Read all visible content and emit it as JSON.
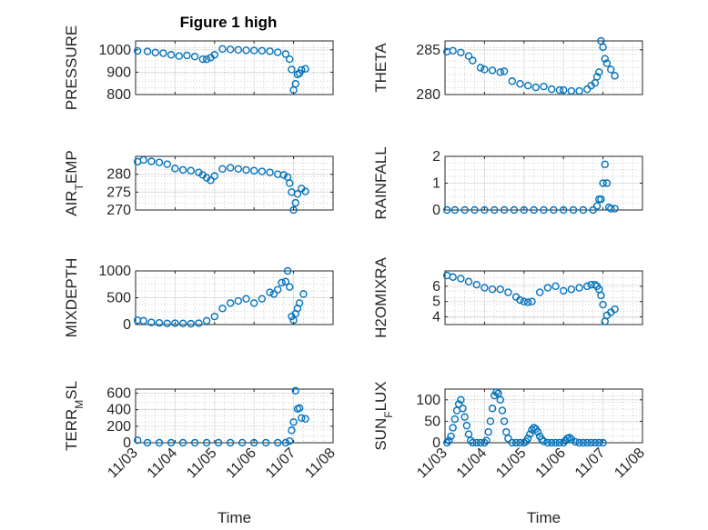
{
  "figure_title": "Figure 1 high",
  "colors": {
    "marker": "#0072BD",
    "axis": "#262626"
  },
  "chart_data": [
    {
      "type": "scatter",
      "title": "Figure 1 high",
      "ylabel": "PRESSURE",
      "xlabel": "",
      "ylim": [
        800,
        1040
      ],
      "yticks": [
        800,
        900,
        1000
      ],
      "xlim": [
        0,
        5
      ],
      "xticks": [
        0,
        1,
        2,
        3,
        4,
        5
      ],
      "xticklabels": [],
      "x": [
        0.05,
        0.3,
        0.5,
        0.7,
        0.9,
        1.1,
        1.3,
        1.5,
        1.7,
        1.8,
        1.9,
        2.0,
        2.2,
        2.4,
        2.6,
        2.8,
        3.0,
        3.2,
        3.4,
        3.6,
        3.8,
        3.9,
        3.95,
        4.0,
        4.05,
        4.1,
        4.15,
        4.2,
        4.3
      ],
      "y": [
        995,
        993,
        988,
        985,
        978,
        972,
        975,
        970,
        958,
        958,
        965,
        978,
        1004,
        1002,
        1000,
        998,
        997,
        996,
        994,
        989,
        981,
        958,
        912,
        820,
        848,
        890,
        895,
        910,
        915
      ]
    },
    {
      "type": "scatter",
      "title": "",
      "ylabel": "THETA",
      "xlabel": "",
      "ylim": [
        280,
        286
      ],
      "yticks": [
        280,
        285
      ],
      "xlim": [
        0,
        5
      ],
      "xticks": [
        0,
        1,
        2,
        3,
        4,
        5
      ],
      "xticklabels": [],
      "x": [
        0.05,
        0.2,
        0.4,
        0.6,
        0.7,
        0.9,
        1.0,
        1.2,
        1.4,
        1.5,
        1.7,
        1.9,
        2.1,
        2.3,
        2.5,
        2.7,
        2.9,
        3.0,
        3.2,
        3.4,
        3.6,
        3.7,
        3.8,
        3.85,
        3.9,
        3.95,
        4.0,
        4.05,
        4.1,
        4.2,
        4.3
      ],
      "y": [
        284.8,
        284.9,
        284.7,
        284.3,
        283.8,
        283.0,
        282.8,
        282.7,
        282.5,
        282.6,
        281.5,
        281.2,
        281.0,
        280.8,
        280.9,
        280.6,
        280.5,
        280.5,
        280.4,
        280.4,
        280.6,
        281.0,
        281.3,
        282.0,
        282.5,
        286.0,
        285.3,
        284.0,
        283.5,
        282.8,
        282.1
      ]
    },
    {
      "type": "scatter",
      "title": "",
      "ylabel": "AIR_TEMP",
      "xlabel": "",
      "ylim": [
        270,
        285
      ],
      "yticks": [
        270,
        275,
        280
      ],
      "xlim": [
        0,
        5
      ],
      "xticks": [
        0,
        1,
        2,
        3,
        4,
        5
      ],
      "xticklabels": [],
      "x": [
        0.05,
        0.2,
        0.4,
        0.6,
        0.8,
        1.0,
        1.2,
        1.4,
        1.6,
        1.7,
        1.8,
        1.9,
        2.0,
        2.2,
        2.4,
        2.6,
        2.8,
        3.0,
        3.2,
        3.4,
        3.6,
        3.75,
        3.85,
        3.9,
        3.95,
        4.0,
        4.05,
        4.1,
        4.2,
        4.3
      ],
      "y": [
        283.5,
        284.0,
        283.6,
        283.3,
        282.8,
        281.6,
        281.2,
        281.0,
        280.5,
        279.8,
        279.0,
        278.3,
        279.5,
        281.5,
        281.8,
        281.5,
        281.2,
        281.0,
        280.8,
        280.5,
        280.0,
        279.8,
        279.2,
        277.5,
        275.0,
        270.0,
        272.0,
        274.5,
        276.0,
        275.2
      ]
    },
    {
      "type": "scatter",
      "title": "",
      "ylabel": "RAINFALL",
      "xlabel": "",
      "ylim": [
        0,
        2
      ],
      "yticks": [
        0,
        1,
        2
      ],
      "xlim": [
        0,
        5
      ],
      "xticks": [
        0,
        1,
        2,
        3,
        4,
        5
      ],
      "xticklabels": [],
      "x": [
        0.05,
        0.25,
        0.5,
        0.75,
        1.0,
        1.25,
        1.5,
        1.75,
        2.0,
        2.25,
        2.5,
        2.75,
        3.0,
        3.25,
        3.5,
        3.75,
        3.85,
        3.9,
        3.95,
        4.0,
        4.05,
        4.1,
        4.15,
        4.2,
        4.3
      ],
      "y": [
        0,
        0,
        0,
        0,
        0,
        0,
        0,
        0,
        0,
        0,
        0,
        0,
        0,
        0,
        0,
        0,
        0.15,
        0.4,
        0.4,
        1.0,
        1.7,
        1.0,
        0.1,
        0.05,
        0.05
      ]
    },
    {
      "type": "scatter",
      "title": "",
      "ylabel": "MIXDEPTH",
      "xlabel": "",
      "ylim": [
        0,
        1000
      ],
      "yticks": [
        0,
        500,
        1000
      ],
      "xlim": [
        0,
        5
      ],
      "xticks": [
        0,
        1,
        2,
        3,
        4,
        5
      ],
      "xticklabels": [],
      "x": [
        0.05,
        0.2,
        0.4,
        0.6,
        0.8,
        1.0,
        1.2,
        1.4,
        1.6,
        1.8,
        2.0,
        2.2,
        2.4,
        2.6,
        2.8,
        3.0,
        3.2,
        3.4,
        3.5,
        3.6,
        3.7,
        3.8,
        3.85,
        3.9,
        3.95,
        4.0,
        4.05,
        4.1,
        4.15,
        4.25
      ],
      "y": [
        80,
        70,
        40,
        30,
        20,
        25,
        20,
        15,
        25,
        70,
        150,
        300,
        400,
        440,
        480,
        400,
        480,
        600,
        570,
        650,
        780,
        800,
        1000,
        700,
        150,
        80,
        200,
        300,
        400,
        570
      ]
    },
    {
      "type": "scatter",
      "title": "",
      "ylabel": "H2OMIXRA",
      "xlabel": "",
      "ylim": [
        3.5,
        7
      ],
      "yticks": [
        4,
        5,
        6
      ],
      "xlim": [
        0,
        5
      ],
      "xticks": [
        0,
        1,
        2,
        3,
        4,
        5
      ],
      "xticklabels": [],
      "x": [
        0.05,
        0.2,
        0.4,
        0.6,
        0.8,
        1.0,
        1.2,
        1.4,
        1.6,
        1.8,
        1.9,
        2.0,
        2.1,
        2.2,
        2.4,
        2.6,
        2.8,
        3.0,
        3.2,
        3.4,
        3.6,
        3.7,
        3.8,
        3.85,
        3.9,
        3.95,
        4.0,
        4.05,
        4.1,
        4.2,
        4.3
      ],
      "y": [
        6.7,
        6.6,
        6.5,
        6.3,
        6.1,
        5.9,
        5.8,
        5.8,
        5.6,
        5.3,
        5.1,
        5.0,
        4.95,
        5.0,
        5.6,
        5.9,
        6.0,
        5.7,
        5.8,
        5.9,
        6.0,
        6.1,
        6.1,
        6.0,
        5.8,
        5.4,
        4.8,
        3.7,
        4.1,
        4.3,
        4.5
      ]
    },
    {
      "type": "scatter",
      "title": "",
      "ylabel": "TERR_MSL",
      "xlabel": "Time",
      "ylim": [
        0,
        650
      ],
      "yticks": [
        0,
        200,
        400,
        600
      ],
      "xlim": [
        0,
        5
      ],
      "xticks": [
        0,
        1,
        2,
        3,
        4,
        5
      ],
      "xticklabels": [
        "11/03",
        "11/04",
        "11/05",
        "11/06",
        "11/07",
        "11/08"
      ],
      "x": [
        0.05,
        0.3,
        0.6,
        0.9,
        1.2,
        1.5,
        1.8,
        2.1,
        2.4,
        2.7,
        3.0,
        3.3,
        3.6,
        3.8,
        3.9,
        3.95,
        4.0,
        4.05,
        4.1,
        4.15,
        4.2,
        4.3
      ],
      "y": [
        30,
        0,
        0,
        0,
        0,
        0,
        0,
        0,
        0,
        0,
        0,
        0,
        0,
        0,
        20,
        150,
        250,
        630,
        410,
        420,
        300,
        290
      ]
    },
    {
      "type": "scatter",
      "title": "",
      "ylabel": "SUN_FLUX",
      "xlabel": "Time",
      "ylim": [
        0,
        125
      ],
      "yticks": [
        0,
        50,
        100
      ],
      "xlim": [
        0,
        5
      ],
      "xticks": [
        0,
        1,
        2,
        3,
        4,
        5
      ],
      "xticklabels": [
        "11/03",
        "11/04",
        "11/05",
        "11/06",
        "11/07",
        "11/08"
      ],
      "x": [
        0.05,
        0.1,
        0.15,
        0.2,
        0.25,
        0.3,
        0.35,
        0.4,
        0.45,
        0.5,
        0.55,
        0.6,
        0.65,
        0.7,
        0.8,
        0.9,
        1.0,
        1.05,
        1.1,
        1.15,
        1.2,
        1.25,
        1.3,
        1.35,
        1.4,
        1.45,
        1.5,
        1.55,
        1.6,
        1.7,
        1.8,
        1.9,
        2.0,
        2.05,
        2.1,
        2.15,
        2.2,
        2.25,
        2.3,
        2.35,
        2.4,
        2.45,
        2.5,
        2.6,
        2.7,
        2.8,
        2.9,
        3.0,
        3.05,
        3.1,
        3.15,
        3.2,
        3.3,
        3.4,
        3.5,
        3.6,
        3.7,
        3.8,
        3.9,
        4.0
      ],
      "y": [
        0,
        5,
        15,
        35,
        55,
        75,
        90,
        100,
        80,
        60,
        40,
        20,
        5,
        0,
        0,
        0,
        0,
        5,
        25,
        50,
        80,
        110,
        118,
        115,
        100,
        75,
        50,
        25,
        10,
        0,
        0,
        0,
        0,
        3,
        10,
        20,
        30,
        35,
        32,
        25,
        15,
        8,
        3,
        0,
        0,
        0,
        0,
        0,
        5,
        10,
        12,
        8,
        2,
        0,
        0,
        0,
        0,
        0,
        0,
        0
      ]
    }
  ]
}
